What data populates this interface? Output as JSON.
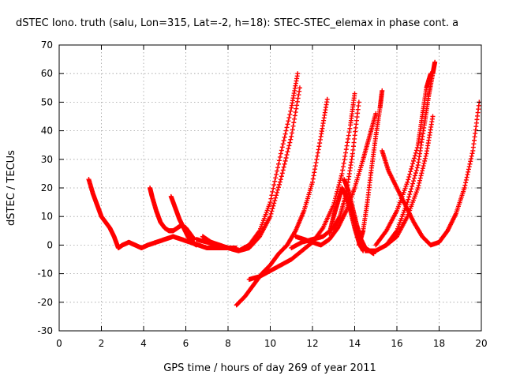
{
  "chart_data": {
    "type": "scatter",
    "title": "dSTEC Iono. truth (salu, Lon=315, Lat=-2, h=18): STEC-STEC_elemax in phase cont. a",
    "xlabel": "GPS time / hours of day 269 of year 2011",
    "ylabel": "dSTEC  / TECUs",
    "xlim": [
      0,
      20
    ],
    "ylim": [
      -30,
      70
    ],
    "xticks": [
      0,
      2,
      4,
      6,
      8,
      10,
      12,
      14,
      16,
      18,
      20
    ],
    "yticks": [
      -30,
      -20,
      -10,
      0,
      10,
      20,
      30,
      40,
      50,
      60,
      70
    ],
    "grid": true,
    "marker": "+",
    "color": "#ff0000",
    "series": [
      {
        "x": [
          1.4,
          1.6,
          1.8,
          2.0,
          2.2,
          2.4,
          2.6,
          2.8,
          3.0,
          3.3,
          3.6,
          3.9,
          4.2,
          4.6,
          5.0,
          5.4,
          5.8,
          6.2,
          6.6,
          7.0,
          7.5,
          8.0,
          8.4
        ],
        "y": [
          23,
          18,
          14,
          10,
          8,
          6,
          3,
          -1,
          0,
          1,
          0,
          -1,
          0,
          1,
          2,
          3,
          2,
          1,
          0,
          -1,
          -1,
          -1,
          -1
        ]
      },
      {
        "x": [
          4.3,
          4.4,
          4.6,
          4.8,
          5.0,
          5.2,
          5.4,
          5.6,
          5.8,
          6.0,
          6.2,
          6.4
        ],
        "y": [
          20,
          17,
          12,
          8,
          6,
          5,
          5,
          6,
          7,
          6,
          4,
          2
        ]
      },
      {
        "x": [
          5.3,
          5.5,
          5.7,
          5.9,
          6.1,
          6.3,
          6.5
        ],
        "y": [
          17,
          13,
          9,
          6,
          3,
          1,
          0
        ]
      },
      {
        "x": [
          6.5,
          7.0,
          7.5,
          8.0,
          8.5,
          9.0,
          9.5,
          10.0,
          10.5,
          11.0,
          11.3
        ],
        "y": [
          2,
          1,
          0,
          -1,
          -2,
          0,
          5,
          15,
          32,
          48,
          60
        ]
      },
      {
        "x": [
          6.8,
          7.2,
          7.6,
          8.0,
          8.5,
          9.0,
          9.5,
          10.0,
          10.5,
          11.0,
          11.4
        ],
        "y": [
          3,
          1,
          0,
          -1,
          -2,
          -1,
          3,
          10,
          23,
          38,
          55
        ]
      },
      {
        "x": [
          8.4,
          8.8,
          9.2,
          9.6,
          10.0,
          10.4,
          10.8,
          11.2,
          11.6,
          12.0,
          12.4,
          12.7
        ],
        "y": [
          -21,
          -18,
          -14,
          -10,
          -7,
          -3,
          0,
          5,
          12,
          22,
          38,
          51
        ]
      },
      {
        "x": [
          9.0,
          9.5,
          10.0,
          10.5,
          11.0,
          11.5,
          12.0,
          12.5,
          13.0,
          13.4,
          13.8,
          14.0
        ],
        "y": [
          -12,
          -11,
          -9,
          -7,
          -5,
          -2,
          1,
          6,
          14,
          25,
          42,
          53
        ]
      },
      {
        "x": [
          11.0,
          11.5,
          12.0,
          12.5,
          13.0,
          13.3,
          13.6,
          13.9,
          14.2
        ],
        "y": [
          -1,
          1,
          2,
          3,
          6,
          10,
          18,
          32,
          50
        ]
      },
      {
        "x": [
          11.2,
          11.6,
          12.0,
          12.4,
          12.8,
          13.2,
          13.6,
          14.0,
          14.4,
          14.7,
          15.0
        ],
        "y": [
          3,
          2,
          1,
          0,
          2,
          6,
          12,
          20,
          30,
          38,
          46
        ]
      },
      {
        "x": [
          12.8,
          13.0,
          13.2,
          13.4,
          13.6,
          13.8,
          14.0,
          14.2,
          14.4
        ],
        "y": [
          4,
          10,
          15,
          20,
          17,
          12,
          6,
          1,
          -2
        ]
      },
      {
        "x": [
          13.5,
          13.7,
          13.9,
          14.1,
          14.3,
          14.5,
          14.7,
          14.9
        ],
        "y": [
          23,
          19,
          13,
          7,
          2,
          -1,
          -2,
          -3
        ]
      },
      {
        "x": [
          14.2,
          14.4,
          14.6,
          14.8,
          15.0,
          15.2,
          15.3
        ],
        "y": [
          0,
          5,
          15,
          27,
          38,
          48,
          54
        ]
      },
      {
        "x": [
          14.5,
          15.0,
          15.5,
          16.0,
          16.5,
          17.0,
          17.3,
          17.5,
          17.7,
          17.8
        ],
        "y": [
          -2,
          -2,
          0,
          5,
          15,
          28,
          42,
          52,
          60,
          64
        ]
      },
      {
        "x": [
          15.0,
          15.5,
          16.0,
          16.5,
          17.0,
          17.2,
          17.4,
          17.6
        ],
        "y": [
          0,
          5,
          12,
          22,
          35,
          45,
          55,
          60
        ]
      },
      {
        "x": [
          15.3,
          15.6,
          16.0,
          16.4,
          16.8,
          17.2,
          17.6,
          18.0,
          18.4,
          18.8,
          19.2,
          19.6,
          19.9
        ],
        "y": [
          33,
          26,
          20,
          14,
          8,
          3,
          0,
          1,
          5,
          11,
          20,
          33,
          50
        ]
      },
      {
        "x": [
          15.5,
          16.0,
          16.5,
          17.0,
          17.4,
          17.7
        ],
        "y": [
          0,
          3,
          10,
          20,
          32,
          45
        ]
      }
    ]
  }
}
